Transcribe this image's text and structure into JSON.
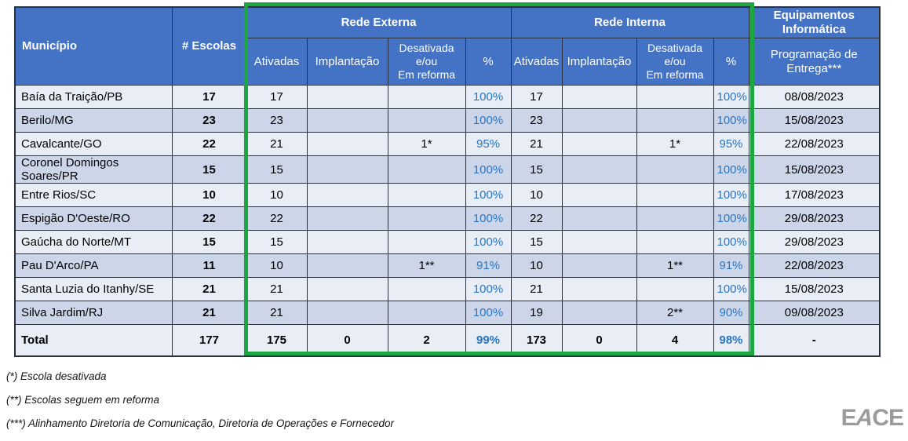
{
  "table": {
    "headers": {
      "municipio": "Município",
      "escolas": "# Escolas",
      "rede_externa": "Rede Externa",
      "rede_interna": "Rede Interna",
      "equipamentos": "Equipamentos\nInformática",
      "ativadas": "Ativadas",
      "implantacao": "Implantação",
      "desativada": "Desativada\ne/ou\nEm reforma",
      "pct": "%",
      "entrega": "Programação de\nEntrega***"
    },
    "rows": [
      [
        "Baía da Traição/PB",
        "17",
        "17",
        "",
        "",
        "100%",
        "17",
        "",
        "",
        "100%",
        "08/08/2023"
      ],
      [
        "Berilo/MG",
        "23",
        "23",
        "",
        "",
        "100%",
        "23",
        "",
        "",
        "100%",
        "15/08/2023"
      ],
      [
        "Cavalcante/GO",
        "22",
        "21",
        "",
        "1*",
        "95%",
        "21",
        "",
        "1*",
        "95%",
        "22/08/2023"
      ],
      [
        "Coronel Domingos Soares/PR",
        "15",
        "15",
        "",
        "",
        "100%",
        "15",
        "",
        "",
        "100%",
        "15/08/2023"
      ],
      [
        "Entre Rios/SC",
        "10",
        "10",
        "",
        "",
        "100%",
        "10",
        "",
        "",
        "100%",
        "17/08/2023"
      ],
      [
        "Espigão D'Oeste/RO",
        "22",
        "22",
        "",
        "",
        "100%",
        "22",
        "",
        "",
        "100%",
        "29/08/2023"
      ],
      [
        "Gaúcha do Norte/MT",
        "15",
        "15",
        "",
        "",
        "100%",
        "15",
        "",
        "",
        "100%",
        "29/08/2023"
      ],
      [
        "Pau D'Arco/PA",
        "11",
        "10",
        "",
        "1**",
        "91%",
        "10",
        "",
        "1**",
        "91%",
        "22/08/2023"
      ],
      [
        "Santa Luzia do Itanhy/SE",
        "21",
        "21",
        "",
        "",
        "100%",
        "21",
        "",
        "",
        "100%",
        "15/08/2023"
      ],
      [
        "Silva Jardim/RJ",
        "21",
        "21",
        "",
        "",
        "100%",
        "19",
        "",
        "2**",
        "90%",
        "09/08/2023"
      ]
    ],
    "total_row": [
      "Total",
      "177",
      "175",
      "0",
      "2",
      "99%",
      "173",
      "0",
      "4",
      "98%",
      "-"
    ]
  },
  "footnotes": [
    "(*) Escola desativada",
    "(**) Escolas seguem em reforma",
    "(***) Alinhamento Diretoria de Comunicação, Diretoria de Operações e Fornecedor"
  ],
  "logo_letters": [
    "E",
    "A",
    "C",
    "E"
  ],
  "colors": {
    "header_blue": "#4472C4",
    "band_light": "#E9EDF5",
    "band_dark": "#CDD6E9",
    "pct_blue": "#2875C4",
    "highlight_green": "#1BA641",
    "border": "#29313F",
    "logo_gray": "#9B9B9B"
  }
}
